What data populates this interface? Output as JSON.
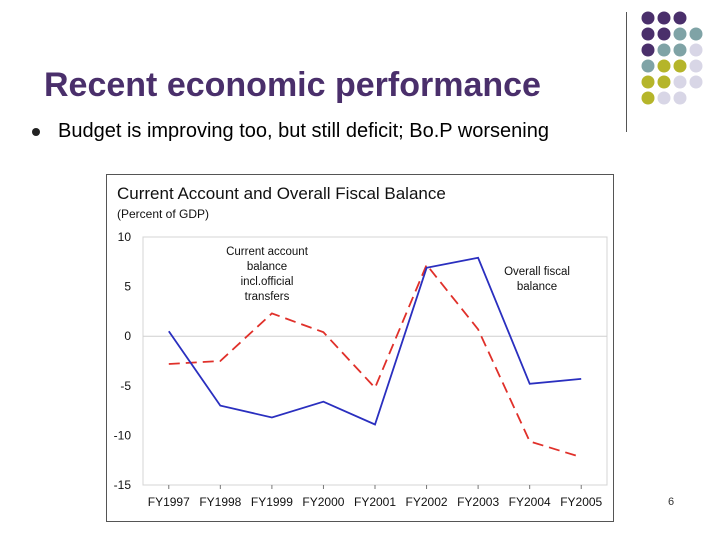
{
  "slide": {
    "title": "Recent economic performance",
    "bullet": "Budget is improving too, but still deficit; Bo.P worsening",
    "page_number": "6",
    "decoration_colors": [
      "#4a2f6b",
      "#7fa3a6",
      "#b5b52a",
      "#d8d6e6"
    ]
  },
  "chart_data": {
    "type": "line",
    "title": "Current Account and Overall Fiscal Balance",
    "subtitle": "(Percent of GDP)",
    "categories": [
      "FY1997",
      "FY1998",
      "FY1999",
      "FY2000",
      "FY2001",
      "FY2002",
      "FY2003",
      "FY2004",
      "FY2005"
    ],
    "yticks": [
      "10",
      "5",
      "0",
      "-5",
      "-10",
      "-15"
    ],
    "ylim": [
      -15,
      10
    ],
    "series": [
      {
        "name": "Current account balance incl.official transfers",
        "name_lines": [
          "Current account",
          "balance",
          "incl.official",
          "transfers"
        ],
        "color": "#2a2fbf",
        "dash": false,
        "values": [
          0.5,
          -7.0,
          -8.2,
          -6.6,
          -8.9,
          6.9,
          7.9,
          -4.8,
          -4.3
        ]
      },
      {
        "name": "Overall fiscal balance",
        "name_lines": [
          "Overall fiscal",
          "balance"
        ],
        "color": "#e0302a",
        "dash": true,
        "values": [
          -2.8,
          -2.5,
          2.3,
          0.4,
          -5.2,
          7.2,
          0.7,
          -10.6,
          -12.2
        ]
      }
    ]
  }
}
